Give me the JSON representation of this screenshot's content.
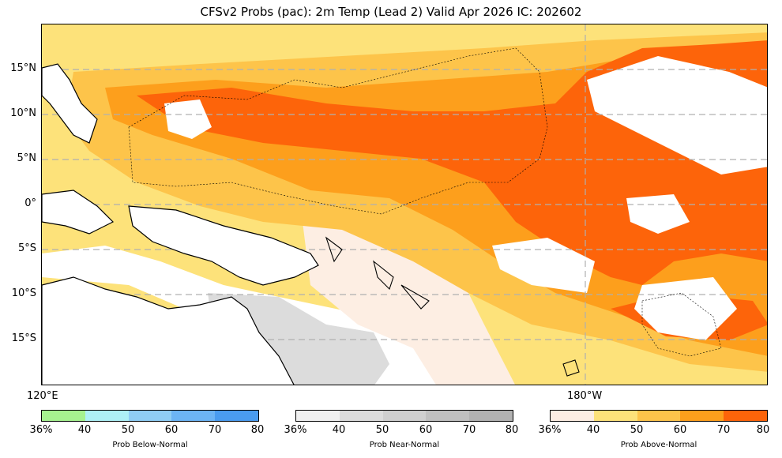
{
  "title": "CFSv2 Probs (pac): 2m Temp (Lead 2) Valid Apr 2026 IC: 202602",
  "map": {
    "lat_labels": [
      "15°N",
      "10°N",
      "5°N",
      "0°",
      "5°S",
      "10°S",
      "15°S"
    ],
    "lon_labels": [
      "120°E",
      "180°W"
    ],
    "land_outline_color": "#000000",
    "grid_color": "#b0b0b0"
  },
  "colorbars": [
    {
      "label": "Prob Below-Normal",
      "ticks": [
        "36%",
        "40",
        "50",
        "60",
        "70",
        "80"
      ],
      "colors": [
        "#a6f28f",
        "#aef0f6",
        "#8fcdf5",
        "#6cb4f5",
        "#4a9cf0"
      ]
    },
    {
      "label": "Prob Near-Normal",
      "ticks": [
        "36%",
        "40",
        "50",
        "60",
        "70",
        "80"
      ],
      "colors": [
        "#f0f0f0",
        "#dcdcdc",
        "#cfcfcf",
        "#c0c0c0",
        "#b2b2b2"
      ]
    },
    {
      "label": "Prob Above-Normal",
      "ticks": [
        "36%",
        "40",
        "50",
        "60",
        "70",
        "80"
      ],
      "colors": [
        "#fdeee3",
        "#fde27a",
        "#fdc44a",
        "#fd9f1c",
        "#fd640a"
      ]
    }
  ]
}
